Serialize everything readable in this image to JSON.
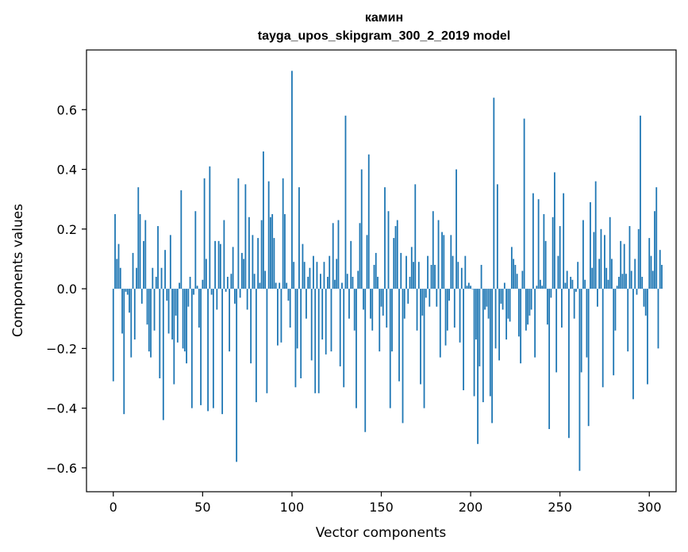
{
  "chart_data": {
    "type": "bar",
    "title": "камин",
    "subtitle": "tayga_upos_skipgram_300_2_2019 model",
    "xlabel": "Vector components",
    "ylabel": "Components values",
    "xlim": [
      -15,
      315
    ],
    "ylim": [
      -0.68,
      0.8
    ],
    "xticks": [
      0,
      50,
      100,
      150,
      200,
      250,
      300
    ],
    "xtick_labels": [
      "0",
      "50",
      "100",
      "150",
      "200",
      "250",
      "300"
    ],
    "yticks": [
      -0.6,
      -0.4,
      -0.2,
      0.0,
      0.2,
      0.4,
      0.6
    ],
    "ytick_labels": [
      "−0.6",
      "−0.4",
      "−0.2",
      "0.0",
      "0.2",
      "0.4",
      "0.6"
    ],
    "grid": false,
    "bar_color": "#1f77b4",
    "x_start": 0,
    "values": [
      -0.31,
      0.25,
      0.1,
      0.15,
      0.07,
      -0.15,
      -0.42,
      -0.01,
      -0.02,
      -0.08,
      -0.23,
      0.12,
      -0.17,
      0.07,
      0.34,
      0.25,
      -0.05,
      0.16,
      0.23,
      -0.12,
      -0.21,
      -0.23,
      0.07,
      -0.14,
      0.04,
      0.21,
      -0.3,
      0.07,
      -0.44,
      0.13,
      -0.04,
      -0.15,
      0.18,
      -0.17,
      -0.32,
      -0.09,
      -0.18,
      0.02,
      0.33,
      -0.2,
      -0.21,
      -0.25,
      -0.06,
      0.04,
      -0.4,
      -0.02,
      0.26,
      0.01,
      -0.13,
      -0.39,
      0.03,
      0.37,
      0.1,
      -0.41,
      0.41,
      -0.02,
      -0.4,
      0.16,
      -0.07,
      0.16,
      0.15,
      -0.42,
      0.23,
      -0.01,
      0.04,
      -0.21,
      0.05,
      0.14,
      -0.05,
      -0.58,
      0.37,
      -0.03,
      0.12,
      0.1,
      0.35,
      -0.07,
      0.24,
      -0.25,
      0.18,
      0.05,
      -0.38,
      0.17,
      0.02,
      0.23,
      0.46,
      0.06,
      -0.35,
      0.36,
      0.24,
      0.25,
      0.17,
      0.02,
      -0.19,
      0.02,
      -0.18,
      0.37,
      0.25,
      0.02,
      -0.04,
      -0.13,
      0.73,
      0.09,
      -0.33,
      -0.2,
      0.34,
      -0.3,
      0.15,
      0.09,
      -0.1,
      0.04,
      0.07,
      -0.24,
      0.11,
      -0.35,
      0.09,
      -0.35,
      0.05,
      -0.17,
      0.09,
      -0.22,
      0.04,
      0.11,
      -0.21,
      0.22,
      0.03,
      0.1,
      0.23,
      -0.26,
      0.02,
      -0.33,
      0.58,
      0.05,
      -0.1,
      0.16,
      0.04,
      -0.14,
      -0.4,
      0.06,
      0.22,
      0.4,
      -0.07,
      -0.48,
      0.18,
      0.45,
      -0.1,
      -0.14,
      0.08,
      0.12,
      0.04,
      -0.21,
      -0.06,
      -0.09,
      0.34,
      -0.13,
      0.26,
      -0.4,
      -0.21,
      0.17,
      0.21,
      0.23,
      -0.31,
      0.12,
      -0.45,
      -0.1,
      0.11,
      -0.05,
      0.04,
      0.14,
      0.09,
      0.35,
      -0.14,
      0.09,
      -0.32,
      -0.09,
      -0.4,
      -0.03,
      0.11,
      -0.06,
      0.08,
      0.26,
      0.08,
      -0.06,
      0.23,
      -0.23,
      0.19,
      0.18,
      -0.19,
      -0.14,
      -0.04,
      0.18,
      0.11,
      -0.13,
      0.4,
      0.09,
      -0.18,
      0.07,
      -0.34,
      0.11,
      0.01,
      0.02,
      0.01,
      0.0,
      -0.36,
      -0.17,
      -0.52,
      -0.26,
      0.08,
      -0.38,
      -0.07,
      -0.06,
      -0.1,
      -0.36,
      -0.45,
      0.64,
      -0.2,
      0.35,
      -0.24,
      -0.05,
      -0.07,
      0.02,
      -0.17,
      -0.1,
      -0.11,
      0.14,
      0.1,
      0.08,
      0.05,
      -0.16,
      -0.25,
      0.06,
      0.57,
      -0.14,
      -0.12,
      -0.09,
      -0.07,
      0.32,
      -0.23,
      0.01,
      0.3,
      0.03,
      0.01,
      0.25,
      0.16,
      -0.12,
      -0.47,
      -0.03,
      0.24,
      0.39,
      -0.28,
      0.11,
      0.21,
      -0.13,
      0.32,
      0.02,
      0.06,
      -0.5,
      0.04,
      0.03,
      -0.1,
      -0.01,
      0.09,
      -0.61,
      -0.28,
      0.23,
      0.03,
      -0.23,
      -0.46,
      0.29,
      0.07,
      0.19,
      0.36,
      -0.06,
      0.1,
      0.2,
      -0.33,
      0.18,
      0.07,
      0.03,
      0.24,
      0.1,
      -0.29,
      -0.14,
      0.01,
      0.04,
      0.16,
      0.05,
      0.15,
      0.05,
      -0.21,
      0.21,
      0.06,
      -0.37,
      0.1,
      -0.02,
      0.2,
      0.58,
      0.04,
      -0.06,
      -0.09,
      -0.32,
      0.17,
      0.11,
      0.06,
      0.26,
      0.34,
      -0.2,
      0.13,
      0.08
    ]
  }
}
